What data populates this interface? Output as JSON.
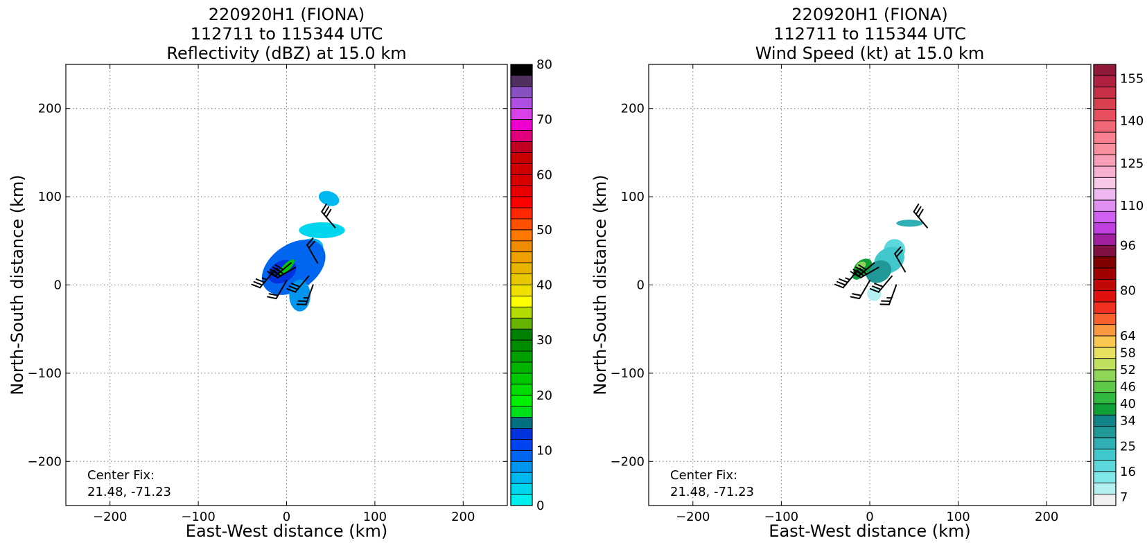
{
  "chart_data": [
    {
      "type": "heatmap",
      "title_lines": [
        "220920H1 (FIONA)",
        "112711 to 115344 UTC",
        "Reflectivity (dBZ) at 15.0 km"
      ],
      "xlabel": "East-West distance (km)",
      "ylabel": "North-South distance (km)",
      "xlim": [
        -250,
        250
      ],
      "ylim": [
        -250,
        250
      ],
      "xticks": [
        -200,
        -100,
        0,
        100,
        200
      ],
      "yticks": [
        -200,
        -100,
        0,
        100,
        200
      ],
      "grid": true,
      "annotation_lines": [
        "Center Fix:",
        "21.48, -71.23"
      ],
      "colorbar": {
        "range": [
          0,
          80
        ],
        "tick_values": [
          0,
          10,
          20,
          30,
          40,
          50,
          60,
          70,
          80
        ],
        "tick_labels": [
          "0",
          "10",
          "20",
          "30",
          "40",
          "50",
          "60",
          "70",
          "80"
        ],
        "colors": [
          "#00f0f0",
          "#00d6ee",
          "#00b8f0",
          "#0096f0",
          "#0066f0",
          "#0044f0",
          "#0032dd",
          "#007080",
          "#00e018",
          "#00f000",
          "#00dc00",
          "#00c800",
          "#00b400",
          "#00a000",
          "#008c00",
          "#008000",
          "#66b400",
          "#b4dc00",
          "#ffff00",
          "#f0e000",
          "#e8c800",
          "#e8b400",
          "#f0a000",
          "#f08c00",
          "#ff7800",
          "#ff5000",
          "#ff2800",
          "#ff0000",
          "#e80000",
          "#d80000",
          "#d00000",
          "#c80000",
          "#c00020",
          "#e0007c",
          "#f000d0",
          "#d840e8",
          "#b050e0",
          "#8850c0",
          "#503060",
          "#000000"
        ]
      },
      "blobs": [
        {
          "x": 40,
          "y": 62,
          "rx": 26,
          "ry": 9,
          "rot": 0,
          "value": 3
        },
        {
          "x": 48,
          "y": 98,
          "rx": 12,
          "ry": 8,
          "rot": -20,
          "value": 4
        },
        {
          "x": 25,
          "y": 40,
          "rx": 17,
          "ry": 12,
          "rot": 20,
          "value": 4
        },
        {
          "x": 8,
          "y": 20,
          "rx": 40,
          "ry": 26,
          "rot": 35,
          "value": 9
        },
        {
          "x": 15,
          "y": -12,
          "rx": 12,
          "ry": 18,
          "rot": 0,
          "value": 7
        },
        {
          "x": -5,
          "y": 15,
          "rx": 17,
          "ry": 12,
          "rot": 30,
          "value": 13
        },
        {
          "x": 0,
          "y": 20,
          "rx": 12,
          "ry": 4,
          "rot": 45,
          "value": 22
        }
      ],
      "barbs": [
        {
          "x": 55,
          "y": 65,
          "dir": 320,
          "speed": 30
        },
        {
          "x": -15,
          "y": 15,
          "dir": 220,
          "speed": 35
        },
        {
          "x": 5,
          "y": 25,
          "dir": 230,
          "speed": 40
        },
        {
          "x": 10,
          "y": 20,
          "dir": 240,
          "speed": 30
        },
        {
          "x": 25,
          "y": 10,
          "dir": 220,
          "speed": 30
        },
        {
          "x": 30,
          "y": 0,
          "dir": 200,
          "speed": 25
        },
        {
          "x": 0,
          "y": 5,
          "dir": 210,
          "speed": 20
        },
        {
          "x": 35,
          "y": 25,
          "dir": 330,
          "speed": 20
        }
      ]
    },
    {
      "type": "heatmap",
      "title_lines": [
        "220920H1 (FIONA)",
        "112711 to 115344 UTC",
        "Wind Speed (kt) at 15.0 km"
      ],
      "xlabel": "East-West distance (km)",
      "ylabel": "North-South distance (km)",
      "xlim": [
        -250,
        250
      ],
      "ylim": [
        -250,
        250
      ],
      "xticks": [
        -200,
        -100,
        0,
        100,
        200
      ],
      "yticks": [
        -200,
        -100,
        0,
        100,
        200
      ],
      "grid": true,
      "annotation_lines": [
        "Center Fix:",
        "21.48, -71.23"
      ],
      "colorbar": {
        "range": [
          4,
          160
        ],
        "tick_values": [
          7,
          16,
          25,
          34,
          40,
          46,
          52,
          58,
          64,
          80,
          96,
          110,
          125,
          140,
          155
        ],
        "tick_labels": [
          "7",
          "16",
          "25",
          "34",
          "40",
          "46",
          "52",
          "58",
          "64",
          "80",
          "96",
          "110",
          "125",
          "140",
          "155"
        ],
        "colors": [
          "#f0f0f0",
          "#b4f0f0",
          "#80e8e8",
          "#5cd8dc",
          "#40c8cc",
          "#30b0b4",
          "#209898",
          "#108488",
          "#10a038",
          "#30b840",
          "#60c848",
          "#90d458",
          "#c0e060",
          "#e8e060",
          "#f8c850",
          "#f89840",
          "#f86030",
          "#f03020",
          "#e01010",
          "#c00808",
          "#a00000",
          "#800000",
          "#801040",
          "#a020a0",
          "#c040e0",
          "#d060f0",
          "#e090f0",
          "#f0b8f0",
          "#f8c8e8",
          "#f8b0d0",
          "#f8a0b8",
          "#f890a0",
          "#f88090",
          "#f06878",
          "#e85060",
          "#d84050",
          "#c83048",
          "#b02040",
          "#901838"
        ]
      },
      "blobs": [
        {
          "x": 45,
          "y": 70,
          "rx": 15,
          "ry": 4,
          "rot": 0,
          "value": 25
        },
        {
          "x": 28,
          "y": 40,
          "rx": 12,
          "ry": 12,
          "rot": 20,
          "value": 18
        },
        {
          "x": 22,
          "y": 28,
          "rx": 18,
          "ry": 14,
          "rot": 30,
          "value": 22
        },
        {
          "x": 10,
          "y": 15,
          "rx": 15,
          "ry": 12,
          "rot": 30,
          "value": 28
        },
        {
          "x": 5,
          "y": -10,
          "rx": 8,
          "ry": 8,
          "rot": 0,
          "value": 11
        },
        {
          "x": -8,
          "y": 20,
          "rx": 12,
          "ry": 8,
          "rot": 40,
          "value": 38
        },
        {
          "x": -10,
          "y": 22,
          "rx": 6,
          "ry": 4,
          "rot": 30,
          "value": 50
        },
        {
          "x": -15,
          "y": 10,
          "rx": 5,
          "ry": 4,
          "rot": 0,
          "value": 36
        }
      ],
      "barbs": [
        {
          "x": 65,
          "y": 65,
          "dir": 320,
          "speed": 30
        },
        {
          "x": -15,
          "y": 15,
          "dir": 220,
          "speed": 35
        },
        {
          "x": 5,
          "y": 25,
          "dir": 230,
          "speed": 40
        },
        {
          "x": 10,
          "y": 20,
          "dir": 240,
          "speed": 30
        },
        {
          "x": 25,
          "y": 10,
          "dir": 220,
          "speed": 30
        },
        {
          "x": 30,
          "y": 0,
          "dir": 200,
          "speed": 25
        },
        {
          "x": 0,
          "y": 5,
          "dir": 210,
          "speed": 20
        },
        {
          "x": 40,
          "y": 15,
          "dir": 330,
          "speed": 20
        }
      ]
    }
  ]
}
